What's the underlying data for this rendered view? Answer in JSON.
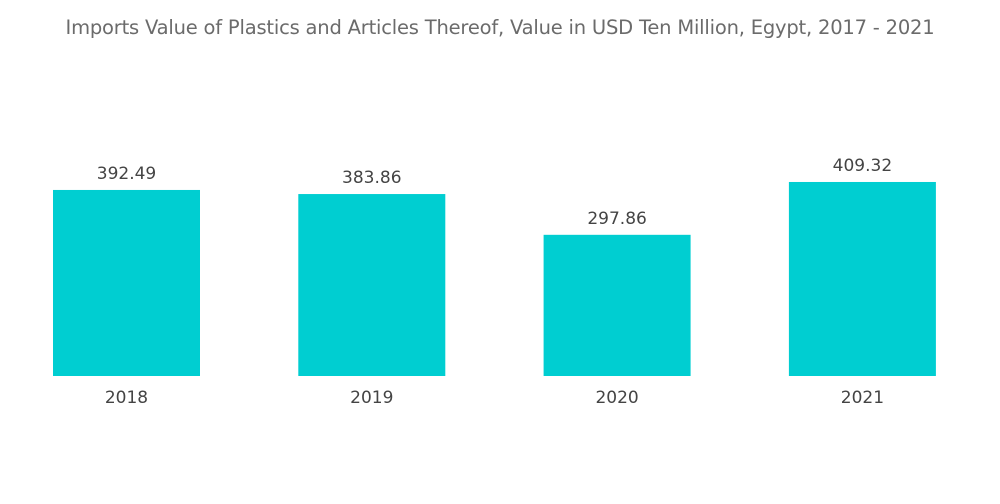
{
  "chart_data": {
    "type": "bar",
    "title": "Imports Value of Plastics and Articles Thereof, Value in USD Ten Million, Egypt, 2017 - 2021",
    "categories": [
      "2018",
      "2019",
      "2020",
      "2021"
    ],
    "values": [
      392.49,
      383.86,
      297.86,
      409.32
    ],
    "value_labels": [
      "392.49",
      "383.86",
      "297.86",
      "409.32"
    ],
    "xlabel": "",
    "ylabel": "",
    "ylim": [
      0,
      500
    ],
    "grid": false,
    "bar_color": "#00CED1"
  }
}
